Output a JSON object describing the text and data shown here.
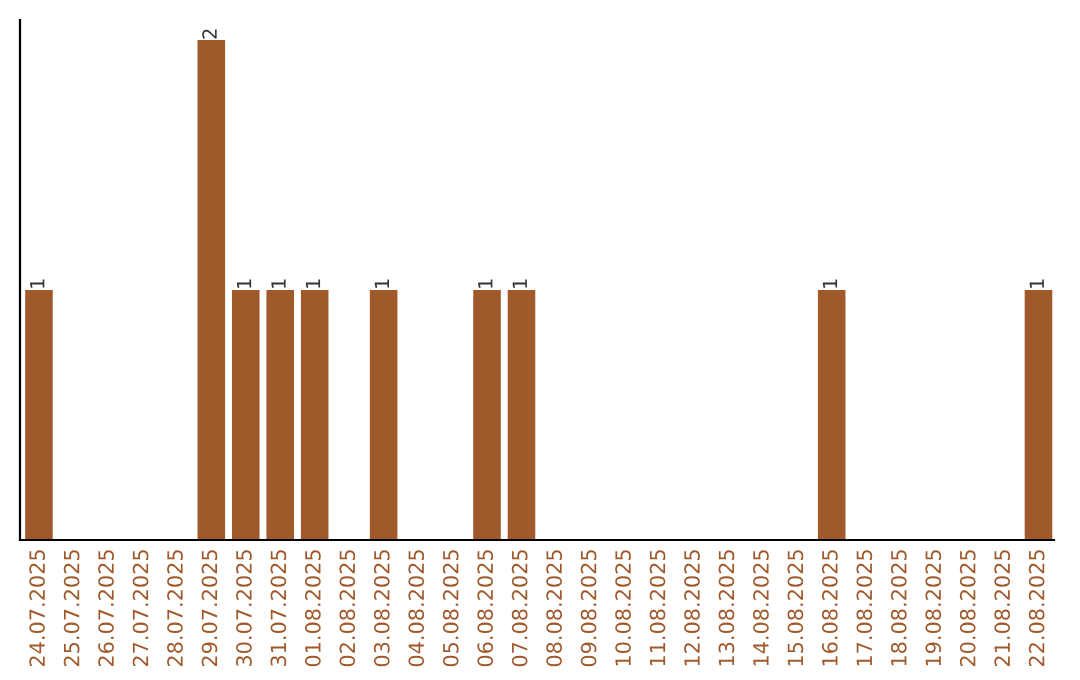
{
  "chart_data": {
    "type": "bar",
    "categories": [
      "24.07.2025",
      "25.07.2025",
      "26.07.2025",
      "27.07.2025",
      "28.07.2025",
      "29.07.2025",
      "30.07.2025",
      "31.07.2025",
      "01.08.2025",
      "02.08.2025",
      "03.08.2025",
      "04.08.2025",
      "05.08.2025",
      "06.08.2025",
      "07.08.2025",
      "08.08.2025",
      "09.08.2025",
      "10.08.2025",
      "11.08.2025",
      "12.08.2025",
      "13.08.2025",
      "14.08.2025",
      "15.08.2025",
      "16.08.2025",
      "17.08.2025",
      "18.08.2025",
      "19.08.2025",
      "20.08.2025",
      "21.08.2025",
      "22.08.2025"
    ],
    "values": [
      1,
      0,
      0,
      0,
      0,
      2,
      1,
      1,
      1,
      0,
      1,
      0,
      0,
      1,
      1,
      0,
      0,
      0,
      0,
      0,
      0,
      0,
      0,
      1,
      0,
      0,
      0,
      0,
      0,
      1
    ],
    "value_labels": [
      "1",
      null,
      null,
      null,
      null,
      "2",
      "1",
      "1",
      "1",
      null,
      "1",
      null,
      null,
      "1",
      "1",
      null,
      null,
      null,
      null,
      null,
      null,
      null,
      null,
      "1",
      null,
      null,
      null,
      null,
      null,
      "1"
    ],
    "color": "#a0592a",
    "grid": false,
    "legend": false
  }
}
